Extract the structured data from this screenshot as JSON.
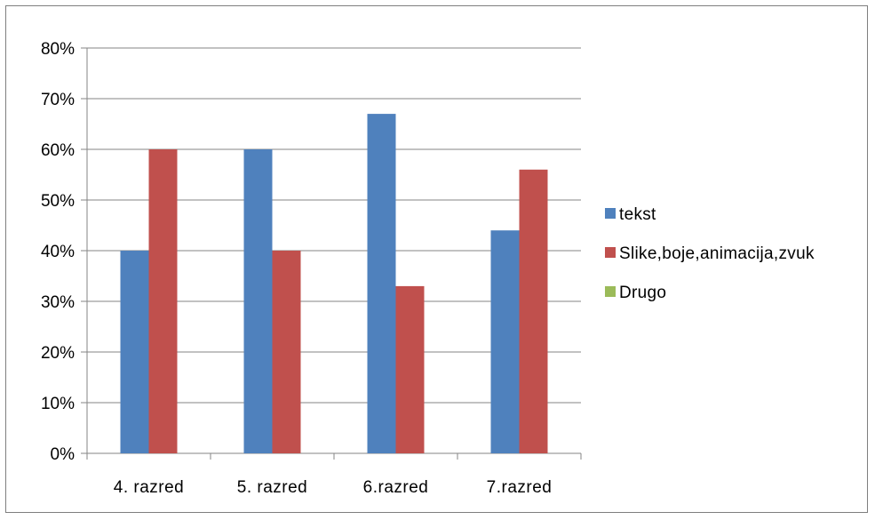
{
  "chart_data": {
    "type": "bar",
    "categories": [
      "4. razred",
      "5. razred",
      "6.razred",
      "7.razred"
    ],
    "series": [
      {
        "name": "tekst",
        "color": "#4f81bd",
        "values": [
          40,
          60,
          67,
          44
        ]
      },
      {
        "name": "Slike,boje,animacija,zvuk",
        "color": "#c0504d",
        "values": [
          60,
          40,
          33,
          56
        ]
      },
      {
        "name": "Drugo",
        "color": "#9bbb59",
        "values": [
          0,
          0,
          0,
          0
        ]
      }
    ],
    "ylim": [
      0,
      80
    ],
    "yticks": [
      "0%",
      "10%",
      "20%",
      "30%",
      "40%",
      "50%",
      "60%",
      "70%",
      "80%"
    ],
    "value_unit": "%",
    "grid": true,
    "legend_position": "right",
    "title": "",
    "xlabel": "",
    "ylabel": ""
  }
}
